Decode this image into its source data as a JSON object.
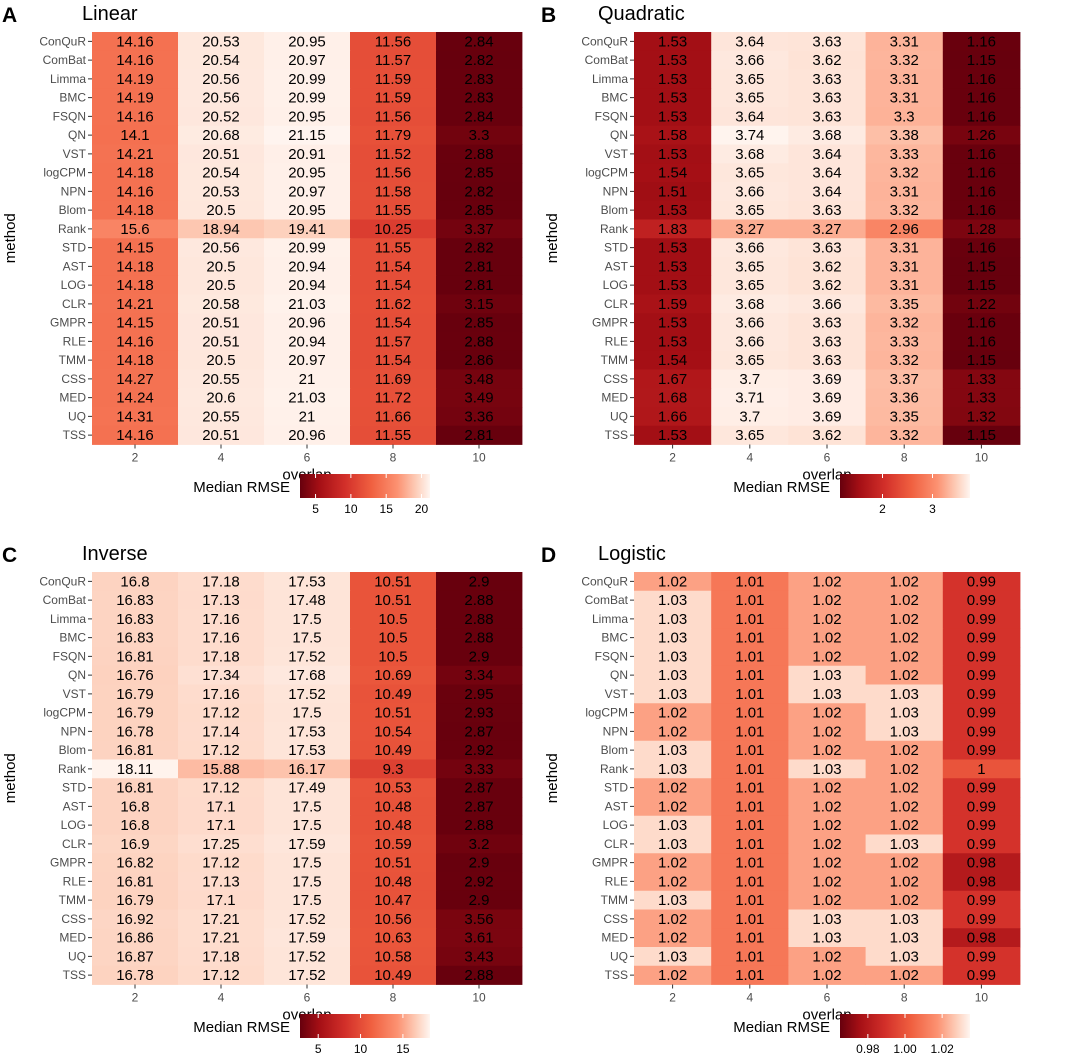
{
  "chart_data": [
    {
      "panel_label": "A",
      "type": "heatmap",
      "title": "Linear",
      "xlabel": "overlap",
      "ylabel": "method",
      "x": [
        "2",
        "4",
        "6",
        "8",
        "10"
      ],
      "y": [
        "ConQuR",
        "ComBat",
        "Limma",
        "BMC",
        "FSQN",
        "QN",
        "VST",
        "logCPM",
        "NPN",
        "Blom",
        "Rank",
        "STD",
        "AST",
        "LOG",
        "CLR",
        "GMPR",
        "RLE",
        "TMM",
        "CSS",
        "MED",
        "UQ",
        "TSS"
      ],
      "values": [
        [
          "14.16",
          "20.53",
          "20.95",
          "11.56",
          "2.84"
        ],
        [
          "14.16",
          "20.54",
          "20.97",
          "11.57",
          "2.82"
        ],
        [
          "14.19",
          "20.56",
          "20.99",
          "11.59",
          "2.83"
        ],
        [
          "14.19",
          "20.56",
          "20.99",
          "11.59",
          "2.83"
        ],
        [
          "14.16",
          "20.52",
          "20.95",
          "11.56",
          "2.84"
        ],
        [
          "14.1",
          "20.68",
          "21.15",
          "11.79",
          "3.3"
        ],
        [
          "14.21",
          "20.51",
          "20.91",
          "11.52",
          "2.88"
        ],
        [
          "14.18",
          "20.54",
          "20.95",
          "11.56",
          "2.85"
        ],
        [
          "14.16",
          "20.53",
          "20.97",
          "11.58",
          "2.82"
        ],
        [
          "14.18",
          "20.5",
          "20.95",
          "11.55",
          "2.85"
        ],
        [
          "15.6",
          "18.94",
          "19.41",
          "10.25",
          "3.37"
        ],
        [
          "14.15",
          "20.56",
          "20.99",
          "11.55",
          "2.82"
        ],
        [
          "14.18",
          "20.5",
          "20.94",
          "11.54",
          "2.81"
        ],
        [
          "14.18",
          "20.5",
          "20.94",
          "11.54",
          "2.81"
        ],
        [
          "14.21",
          "20.58",
          "21.03",
          "11.62",
          "3.15"
        ],
        [
          "14.15",
          "20.51",
          "20.96",
          "11.54",
          "2.85"
        ],
        [
          "14.16",
          "20.51",
          "20.94",
          "11.57",
          "2.88"
        ],
        [
          "14.18",
          "20.5",
          "20.97",
          "11.54",
          "2.86"
        ],
        [
          "14.27",
          "20.55",
          "21",
          "11.69",
          "3.48"
        ],
        [
          "14.24",
          "20.6",
          "21.03",
          "11.72",
          "3.49"
        ],
        [
          "14.31",
          "20.55",
          "21",
          "11.66",
          "3.36"
        ],
        [
          "14.16",
          "20.51",
          "20.96",
          "11.55",
          "2.81"
        ]
      ],
      "legend_title": "Median RMSE",
      "color_range": [
        2.8,
        21.2
      ],
      "legend_ticks": [
        "5",
        "10",
        "15",
        "20"
      ]
    },
    {
      "panel_label": "B",
      "type": "heatmap",
      "title": "Quadratic",
      "xlabel": "overlap",
      "ylabel": "method",
      "x": [
        "2",
        "4",
        "6",
        "8",
        "10"
      ],
      "y": [
        "ConQuR",
        "ComBat",
        "Limma",
        "BMC",
        "FSQN",
        "QN",
        "VST",
        "logCPM",
        "NPN",
        "Blom",
        "Rank",
        "STD",
        "AST",
        "LOG",
        "CLR",
        "GMPR",
        "RLE",
        "TMM",
        "CSS",
        "MED",
        "UQ",
        "TSS"
      ],
      "values": [
        [
          "1.53",
          "3.64",
          "3.63",
          "3.31",
          "1.16"
        ],
        [
          "1.53",
          "3.66",
          "3.62",
          "3.32",
          "1.15"
        ],
        [
          "1.53",
          "3.65",
          "3.63",
          "3.31",
          "1.16"
        ],
        [
          "1.53",
          "3.65",
          "3.63",
          "3.31",
          "1.16"
        ],
        [
          "1.53",
          "3.64",
          "3.63",
          "3.3",
          "1.16"
        ],
        [
          "1.58",
          "3.74",
          "3.68",
          "3.38",
          "1.26"
        ],
        [
          "1.53",
          "3.68",
          "3.64",
          "3.33",
          "1.16"
        ],
        [
          "1.54",
          "3.65",
          "3.64",
          "3.32",
          "1.16"
        ],
        [
          "1.51",
          "3.66",
          "3.64",
          "3.31",
          "1.16"
        ],
        [
          "1.53",
          "3.65",
          "3.63",
          "3.32",
          "1.16"
        ],
        [
          "1.83",
          "3.27",
          "3.27",
          "2.96",
          "1.28"
        ],
        [
          "1.53",
          "3.66",
          "3.63",
          "3.31",
          "1.16"
        ],
        [
          "1.53",
          "3.65",
          "3.62",
          "3.31",
          "1.15"
        ],
        [
          "1.53",
          "3.65",
          "3.62",
          "3.31",
          "1.15"
        ],
        [
          "1.59",
          "3.68",
          "3.66",
          "3.35",
          "1.22"
        ],
        [
          "1.53",
          "3.66",
          "3.63",
          "3.32",
          "1.16"
        ],
        [
          "1.53",
          "3.66",
          "3.63",
          "3.33",
          "1.16"
        ],
        [
          "1.54",
          "3.65",
          "3.63",
          "3.32",
          "1.15"
        ],
        [
          "1.67",
          "3.7",
          "3.69",
          "3.37",
          "1.33"
        ],
        [
          "1.68",
          "3.71",
          "3.69",
          "3.36",
          "1.33"
        ],
        [
          "1.66",
          "3.7",
          "3.69",
          "3.35",
          "1.32"
        ],
        [
          "1.53",
          "3.65",
          "3.62",
          "3.32",
          "1.15"
        ]
      ],
      "legend_title": "Median RMSE",
      "color_range": [
        1.15,
        3.75
      ],
      "legend_ticks": [
        "2",
        "3"
      ]
    },
    {
      "panel_label": "C",
      "type": "heatmap",
      "title": "Inverse",
      "xlabel": "overlap",
      "ylabel": "method",
      "x": [
        "2",
        "4",
        "6",
        "8",
        "10"
      ],
      "y": [
        "ConQuR",
        "ComBat",
        "Limma",
        "BMC",
        "FSQN",
        "QN",
        "VST",
        "logCPM",
        "NPN",
        "Blom",
        "Rank",
        "STD",
        "AST",
        "LOG",
        "CLR",
        "GMPR",
        "RLE",
        "TMM",
        "CSS",
        "MED",
        "UQ",
        "TSS"
      ],
      "values": [
        [
          "16.8",
          "17.18",
          "17.53",
          "10.51",
          "2.9"
        ],
        [
          "16.83",
          "17.13",
          "17.48",
          "10.51",
          "2.88"
        ],
        [
          "16.83",
          "17.16",
          "17.5",
          "10.5",
          "2.88"
        ],
        [
          "16.83",
          "17.16",
          "17.5",
          "10.5",
          "2.88"
        ],
        [
          "16.81",
          "17.18",
          "17.52",
          "10.5",
          "2.9"
        ],
        [
          "16.76",
          "17.34",
          "17.68",
          "10.69",
          "3.34"
        ],
        [
          "16.79",
          "17.16",
          "17.52",
          "10.49",
          "2.95"
        ],
        [
          "16.79",
          "17.12",
          "17.5",
          "10.51",
          "2.93"
        ],
        [
          "16.78",
          "17.14",
          "17.53",
          "10.54",
          "2.87"
        ],
        [
          "16.81",
          "17.12",
          "17.53",
          "10.49",
          "2.92"
        ],
        [
          "18.11",
          "15.88",
          "16.17",
          "9.3",
          "3.33"
        ],
        [
          "16.81",
          "17.12",
          "17.49",
          "10.53",
          "2.87"
        ],
        [
          "16.8",
          "17.1",
          "17.5",
          "10.48",
          "2.87"
        ],
        [
          "16.8",
          "17.1",
          "17.5",
          "10.48",
          "2.88"
        ],
        [
          "16.9",
          "17.25",
          "17.59",
          "10.59",
          "3.2"
        ],
        [
          "16.82",
          "17.12",
          "17.5",
          "10.51",
          "2.9"
        ],
        [
          "16.81",
          "17.13",
          "17.5",
          "10.48",
          "2.92"
        ],
        [
          "16.79",
          "17.1",
          "17.5",
          "10.47",
          "2.9"
        ],
        [
          "16.92",
          "17.21",
          "17.52",
          "10.56",
          "3.56"
        ],
        [
          "16.86",
          "17.21",
          "17.59",
          "10.63",
          "3.61"
        ],
        [
          "16.87",
          "17.18",
          "17.52",
          "10.58",
          "3.43"
        ],
        [
          "16.78",
          "17.12",
          "17.52",
          "10.49",
          "2.88"
        ]
      ],
      "legend_title": "Median RMSE",
      "color_range": [
        2.85,
        18.2
      ],
      "legend_ticks": [
        "5",
        "10",
        "15"
      ]
    },
    {
      "panel_label": "D",
      "type": "heatmap",
      "title": "Logistic",
      "xlabel": "overlap",
      "ylabel": "method",
      "x": [
        "2",
        "4",
        "6",
        "8",
        "10"
      ],
      "y": [
        "ConQuR",
        "ComBat",
        "Limma",
        "BMC",
        "FSQN",
        "QN",
        "VST",
        "logCPM",
        "NPN",
        "Blom",
        "Rank",
        "STD",
        "AST",
        "LOG",
        "CLR",
        "GMPR",
        "RLE",
        "TMM",
        "CSS",
        "MED",
        "UQ",
        "TSS"
      ],
      "values": [
        [
          "1.02",
          "1.01",
          "1.02",
          "1.02",
          "0.99"
        ],
        [
          "1.03",
          "1.01",
          "1.02",
          "1.02",
          "0.99"
        ],
        [
          "1.03",
          "1.01",
          "1.02",
          "1.02",
          "0.99"
        ],
        [
          "1.03",
          "1.01",
          "1.02",
          "1.02",
          "0.99"
        ],
        [
          "1.03",
          "1.01",
          "1.02",
          "1.02",
          "0.99"
        ],
        [
          "1.03",
          "1.01",
          "1.03",
          "1.02",
          "0.99"
        ],
        [
          "1.03",
          "1.01",
          "1.03",
          "1.03",
          "0.99"
        ],
        [
          "1.02",
          "1.01",
          "1.02",
          "1.03",
          "0.99"
        ],
        [
          "1.02",
          "1.01",
          "1.02",
          "1.03",
          "0.99"
        ],
        [
          "1.03",
          "1.01",
          "1.02",
          "1.02",
          "0.99"
        ],
        [
          "1.03",
          "1.01",
          "1.03",
          "1.02",
          "1"
        ],
        [
          "1.02",
          "1.01",
          "1.02",
          "1.02",
          "0.99"
        ],
        [
          "1.02",
          "1.01",
          "1.02",
          "1.02",
          "0.99"
        ],
        [
          "1.03",
          "1.01",
          "1.02",
          "1.02",
          "0.99"
        ],
        [
          "1.03",
          "1.01",
          "1.02",
          "1.03",
          "0.99"
        ],
        [
          "1.02",
          "1.01",
          "1.02",
          "1.02",
          "0.98"
        ],
        [
          "1.02",
          "1.01",
          "1.02",
          "1.02",
          "0.98"
        ],
        [
          "1.03",
          "1.01",
          "1.02",
          "1.02",
          "0.99"
        ],
        [
          "1.02",
          "1.01",
          "1.03",
          "1.03",
          "0.99"
        ],
        [
          "1.02",
          "1.01",
          "1.03",
          "1.03",
          "0.98"
        ],
        [
          "1.03",
          "1.01",
          "1.02",
          "1.03",
          "0.99"
        ],
        [
          "1.02",
          "1.01",
          "1.02",
          "1.02",
          "0.99"
        ]
      ],
      "legend_title": "Median RMSE",
      "color_range": [
        0.965,
        1.035
      ],
      "legend_ticks": [
        "0.98",
        "1.00",
        "1.02"
      ]
    }
  ],
  "colors": {
    "low": "#a50f15",
    "mid": "#fb6a4a",
    "high": "#fff5f0",
    "axis_text": "#4d4d4d"
  }
}
